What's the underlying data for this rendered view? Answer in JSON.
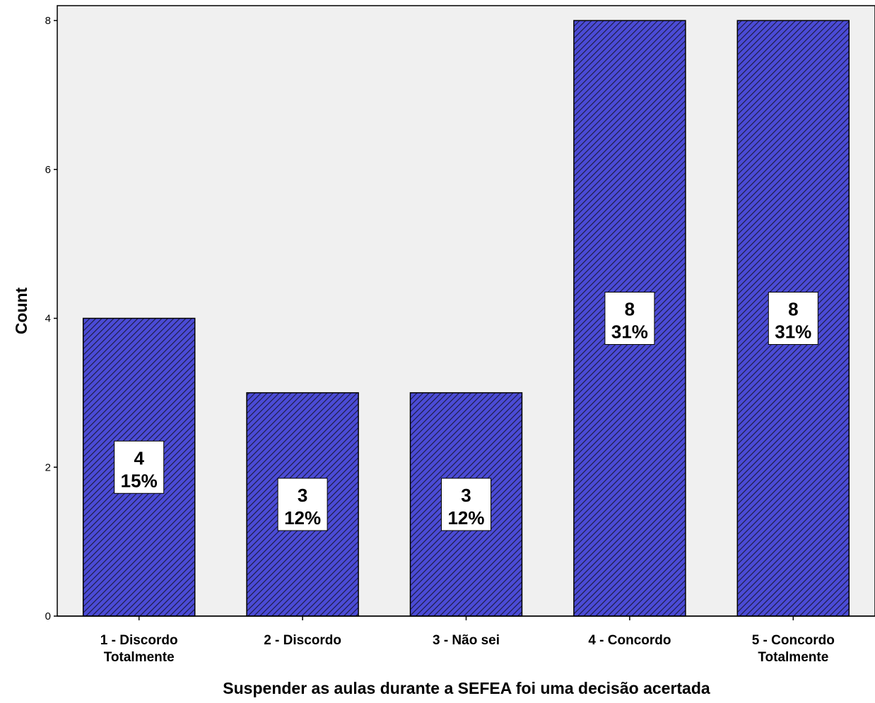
{
  "chart_data": {
    "type": "bar",
    "categories": [
      [
        "1 - Discordo",
        "Totalmente"
      ],
      [
        "2 - Discordo"
      ],
      [
        "3 - Não sei"
      ],
      [
        "4 - Concordo"
      ],
      [
        "5 - Concordo",
        "Totalmente"
      ]
    ],
    "values": [
      4,
      3,
      3,
      8,
      8
    ],
    "percent_labels": [
      "15%",
      "12%",
      "12%",
      "31%",
      "31%"
    ],
    "xlabel": "Suspender as aulas durante a SEFEA foi uma decisão acertada",
    "ylabel": "Count",
    "ylim": [
      0,
      8.2
    ],
    "yticks": [
      0,
      2,
      4,
      6,
      8
    ],
    "grid": false,
    "colors": {
      "bar_fill": "#4b4bd6",
      "hatch": "#1a1a3a",
      "plot_background": "#f0f0f0",
      "label_box": "#ffffff"
    }
  }
}
